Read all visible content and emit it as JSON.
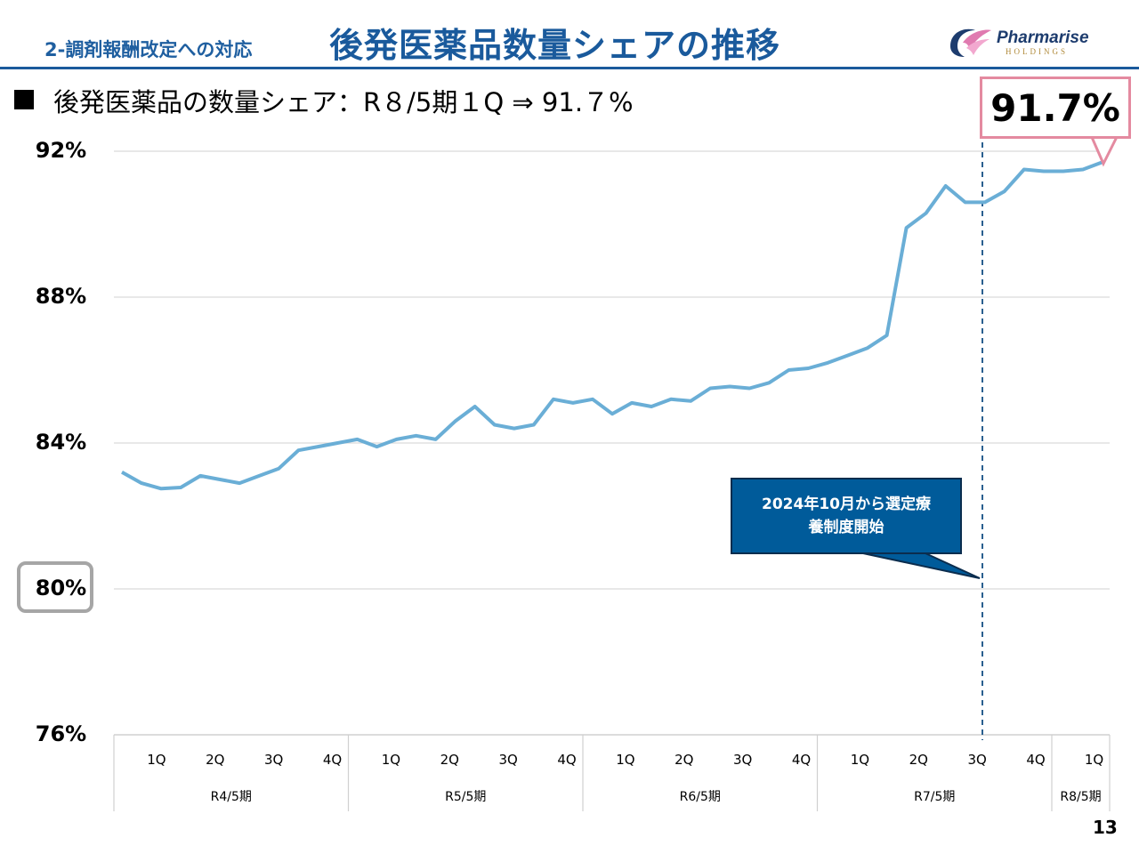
{
  "header": {
    "section_label": "2-調剤報酬改定への対応",
    "title": "後発医薬品数量シェアの推移",
    "logo_name": "Pharmarise",
    "logo_sub": "HOLDINGS"
  },
  "subtitle": "後発医薬品の数量シェア：R８/5期１Q ⇒ 91.７%",
  "callout_value": "91.7%",
  "note": {
    "line1": "2024年10月から選定療",
    "line2": "養制度開始"
  },
  "page_number": "13",
  "colors": {
    "line": "#6aaed6",
    "title": "#1a5a9c",
    "note_bg": "#005b9a",
    "callout_border": "#e48aa0"
  },
  "chart_data": {
    "type": "line",
    "yticks": [
      "92%",
      "88%",
      "84%",
      "80%",
      "76%"
    ],
    "ylim": [
      76,
      92
    ],
    "periods": [
      {
        "label": "R4/5期",
        "quarters": [
          "1Q",
          "2Q",
          "3Q",
          "4Q"
        ]
      },
      {
        "label": "R5/5期",
        "quarters": [
          "1Q",
          "2Q",
          "3Q",
          "4Q"
        ]
      },
      {
        "label": "R6/5期",
        "quarters": [
          "1Q",
          "2Q",
          "3Q",
          "4Q"
        ]
      },
      {
        "label": "R7/5期",
        "quarters": [
          "1Q",
          "2Q",
          "3Q",
          "4Q"
        ]
      },
      {
        "label": "R8/5期",
        "quarters": [
          "1Q"
        ]
      }
    ],
    "series": [
      {
        "values": [
          83.2,
          82.9,
          82.75,
          82.78,
          83.1,
          83.0,
          82.9,
          83.1,
          83.3,
          83.8,
          83.9,
          84.0,
          84.1,
          83.9,
          84.1,
          84.2,
          84.1,
          84.6,
          85.0,
          84.5,
          84.4,
          84.5,
          85.2,
          85.1,
          85.2,
          84.8,
          85.1,
          85.0,
          85.2,
          85.15,
          85.5,
          85.55,
          85.5,
          85.65,
          86.0,
          86.05,
          86.2,
          86.4,
          86.6,
          86.95,
          89.9,
          90.3,
          91.05,
          90.6,
          90.6,
          90.9,
          91.5,
          91.45,
          91.45,
          91.5,
          91.7
        ]
      }
    ],
    "annotation_marker_index": 44,
    "grid": true
  }
}
